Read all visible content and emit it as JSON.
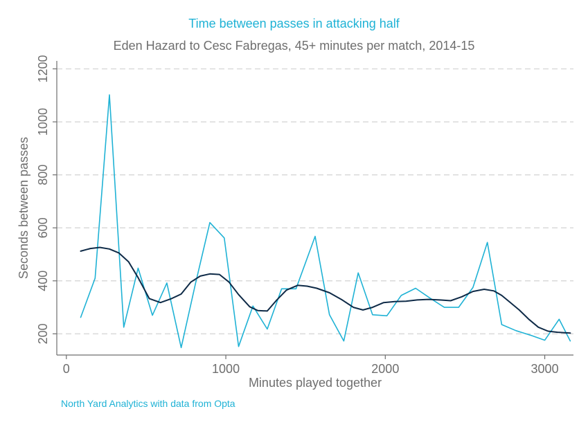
{
  "title": "Time between passes in attacking half",
  "subtitle": "Eden Hazard to Cesc Fabregas, 45+ minutes per match, 2014-15",
  "source": "North Yard Analytics with data from Opta",
  "colors": {
    "raw": "#1fb2d5",
    "smooth": "#0e2a47",
    "grid": "#d9d9d9",
    "axis": "#6e6e6e"
  },
  "chart_data": {
    "type": "line",
    "xlabel": "Minutes played together",
    "ylabel": "Seconds between passes",
    "xlim": [
      -60,
      3180
    ],
    "ylim": [
      120,
      1230
    ],
    "xticks": [
      0,
      1000,
      2000,
      3000
    ],
    "yticks": [
      200,
      400,
      600,
      800,
      1000,
      1200
    ],
    "grid": true,
    "series": [
      {
        "role": "raw",
        "x": [
          90,
          180,
          270,
          360,
          450,
          540,
          630,
          720,
          810,
          900,
          990,
          1080,
          1170,
          1260,
          1350,
          1440,
          1560,
          1650,
          1740,
          1830,
          1920,
          2010,
          2100,
          2190,
          2280,
          2370,
          2460,
          2550,
          2640,
          2730,
          2820,
          2910,
          3000,
          3090,
          3160
        ],
        "y": [
          262,
          410,
          1102,
          225,
          448,
          270,
          392,
          148,
          390,
          620,
          562,
          152,
          305,
          218,
          370,
          370,
          568,
          272,
          173,
          430,
          272,
          268,
          345,
          372,
          335,
          300,
          300,
          375,
          545,
          235,
          212,
          195,
          176,
          255,
          173
        ]
      },
      {
        "role": "smoothed",
        "x": [
          90,
          150,
          210,
          270,
          330,
          390,
          450,
          520,
          590,
          660,
          720,
          780,
          840,
          900,
          960,
          1020,
          1080,
          1150,
          1200,
          1260,
          1320,
          1380,
          1450,
          1510,
          1570,
          1650,
          1730,
          1800,
          1860,
          1920,
          1990,
          2060,
          2130,
          2200,
          2270,
          2340,
          2410,
          2480,
          2550,
          2620,
          2680,
          2730,
          2780,
          2840,
          2900,
          2960,
          3020,
          3080,
          3160
        ],
        "y": [
          512,
          522,
          526,
          520,
          505,
          472,
          412,
          333,
          318,
          333,
          350,
          395,
          418,
          426,
          424,
          395,
          348,
          302,
          288,
          286,
          328,
          365,
          383,
          380,
          372,
          355,
          328,
          300,
          290,
          300,
          318,
          322,
          323,
          328,
          330,
          328,
          325,
          340,
          360,
          368,
          362,
          345,
          320,
          290,
          255,
          225,
          210,
          206,
          203
        ]
      }
    ]
  }
}
